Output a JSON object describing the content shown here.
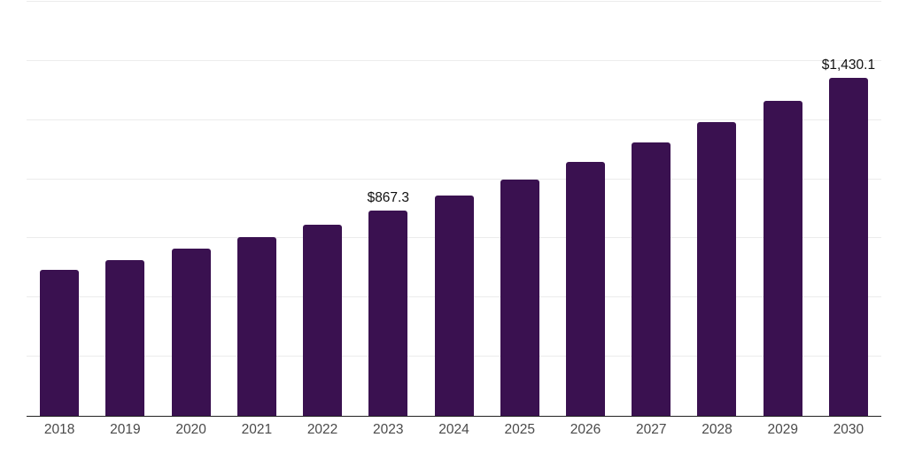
{
  "chart_data": {
    "type": "bar",
    "title": "",
    "xlabel": "",
    "ylabel": "",
    "categories": [
      "2018",
      "2019",
      "2020",
      "2021",
      "2022",
      "2023",
      "2024",
      "2025",
      "2026",
      "2027",
      "2028",
      "2029",
      "2030"
    ],
    "values": [
      617,
      659,
      705,
      756,
      808,
      867.3,
      931,
      1000,
      1075,
      1154,
      1240,
      1332,
      1430.1
    ],
    "value_labels": {
      "2023": "$867.3",
      "2030": "$1,430.1"
    },
    "ylim": [
      0,
      1750
    ],
    "gridline_step": 250,
    "grid": "horizontal-only",
    "legend": "none",
    "y_tick_labels_visible": false
  },
  "colors": {
    "background": "#ffffff",
    "bar": "#3A1150",
    "gridline": "#ececec",
    "axis_line": "#222222",
    "x_tick_label_text": "#4a4a4a",
    "value_label_text": "#111111"
  }
}
